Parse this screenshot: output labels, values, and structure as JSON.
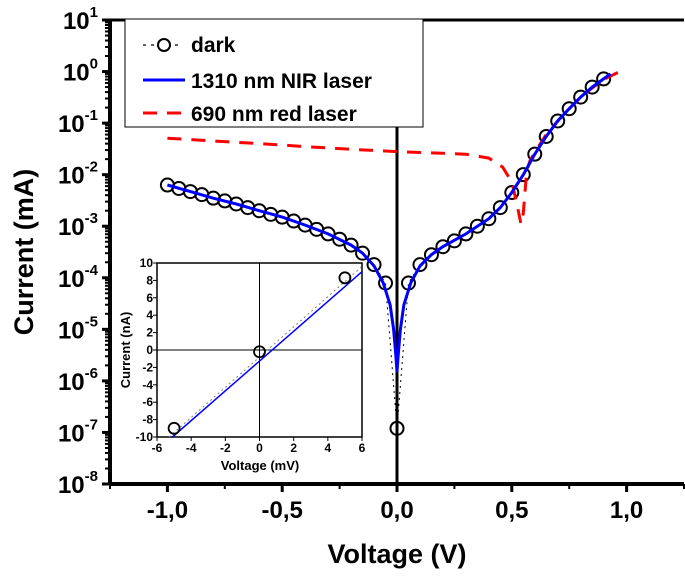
{
  "chart_data": [
    {
      "type": "line",
      "xlabel": "Voltage (V)",
      "ylabel": "Current (mA)",
      "xlim": [
        -1.25,
        1.25
      ],
      "ylim": [
        1e-08,
        10
      ],
      "y_scale": "log",
      "grid": false,
      "legend_position": "top-left",
      "x_ticks": [
        "-1,0",
        "-0,5",
        "0,0",
        "0,5",
        "1,0"
      ],
      "x_tick_values": [
        -1.0,
        -0.5,
        0.0,
        0.5,
        1.0
      ],
      "y_ticks": [
        {
          "base": "10",
          "exp": "1"
        },
        {
          "base": "10",
          "exp": "0"
        },
        {
          "base": "10",
          "exp": "-1"
        },
        {
          "base": "10",
          "exp": "-2"
        },
        {
          "base": "10",
          "exp": "-3"
        },
        {
          "base": "10",
          "exp": "-4"
        },
        {
          "base": "10",
          "exp": "-5"
        },
        {
          "base": "10",
          "exp": "-6"
        },
        {
          "base": "10",
          "exp": "-7"
        },
        {
          "base": "10",
          "exp": "-8"
        }
      ],
      "y_tick_values": [
        10,
        1,
        0.1,
        0.01,
        0.001,
        0.0001,
        1e-05,
        1e-06,
        1e-07,
        1e-08
      ],
      "series": [
        {
          "name": "dark",
          "color": "#000000",
          "style": "dotted-circles",
          "x": [
            -1.0,
            -0.95,
            -0.9,
            -0.85,
            -0.8,
            -0.75,
            -0.7,
            -0.65,
            -0.6,
            -0.55,
            -0.5,
            -0.45,
            -0.4,
            -0.35,
            -0.3,
            -0.25,
            -0.2,
            -0.15,
            -0.1,
            -0.05,
            0.0,
            0.05,
            0.1,
            0.15,
            0.2,
            0.25,
            0.3,
            0.35,
            0.4,
            0.45,
            0.5,
            0.55,
            0.6,
            0.65,
            0.7,
            0.75,
            0.8,
            0.85,
            0.9
          ],
          "y": [
            0.0063,
            0.0054,
            0.0047,
            0.0041,
            0.0035,
            0.0031,
            0.0027,
            0.0023,
            0.002,
            0.0017,
            0.0015,
            0.00126,
            0.00105,
            0.00087,
            0.00071,
            0.00056,
            0.00043,
            0.0003,
            0.00018,
            7.9e-05,
            1.2e-07,
            7.9e-05,
            0.00018,
            0.00028,
            0.0004,
            0.00052,
            0.00071,
            0.001,
            0.0014,
            0.0023,
            0.0045,
            0.01,
            0.025,
            0.055,
            0.11,
            0.19,
            0.32,
            0.5,
            0.72
          ]
        },
        {
          "name": "1310 nm NIR laser",
          "color": "#0000ff",
          "style": "solid",
          "x": [
            -1.0,
            -0.9,
            -0.8,
            -0.7,
            -0.6,
            -0.5,
            -0.4,
            -0.3,
            -0.2,
            -0.15,
            -0.1,
            -0.06,
            -0.03,
            -0.015,
            -0.005,
            0.0,
            0.005,
            0.015,
            0.03,
            0.06,
            0.1,
            0.15,
            0.2,
            0.3,
            0.4,
            0.45,
            0.5,
            0.55,
            0.6,
            0.65,
            0.7,
            0.75,
            0.8,
            0.85,
            0.93
          ],
          "y": [
            0.0063,
            0.0047,
            0.0035,
            0.0027,
            0.002,
            0.0015,
            0.00105,
            0.00071,
            0.00043,
            0.0003,
            0.00017,
            8e-05,
            3e-05,
            1e-05,
            3e-06,
            1.5e-06,
            3e-06,
            1e-05,
            3e-05,
            8e-05,
            0.00017,
            0.00028,
            0.0004,
            0.00071,
            0.0014,
            0.0023,
            0.0045,
            0.01,
            0.025,
            0.055,
            0.11,
            0.19,
            0.32,
            0.5,
            0.9
          ]
        },
        {
          "name": "690 nm red laser",
          "color": "#ff0000",
          "style": "dashed",
          "x": [
            -1.0,
            -0.8,
            -0.6,
            -0.4,
            -0.2,
            0.0,
            0.2,
            0.3,
            0.4,
            0.46,
            0.5,
            0.52,
            0.54,
            0.55,
            0.565,
            0.58,
            0.6,
            0.65,
            0.7,
            0.75,
            0.8,
            0.85,
            0.9,
            0.97
          ],
          "y": [
            0.051,
            0.045,
            0.04,
            0.035,
            0.031,
            0.028,
            0.026,
            0.025,
            0.021,
            0.014,
            0.0072,
            0.003,
            0.0011,
            0.0018,
            0.012,
            0.019,
            0.027,
            0.06,
            0.11,
            0.19,
            0.32,
            0.48,
            0.7,
            1.0
          ]
        }
      ]
    },
    {
      "type": "line",
      "xlabel": "Voltage (mV)",
      "ylabel": "Current (nA)",
      "xlim": [
        -6,
        6
      ],
      "ylim": [
        -10,
        10
      ],
      "grid": false,
      "x_ticks": [
        "-6",
        "-4",
        "-2",
        "0",
        "2",
        "4",
        "6"
      ],
      "x_tick_values": [
        -6,
        -4,
        -2,
        0,
        2,
        4,
        6
      ],
      "y_ticks": [
        "10",
        "8",
        "6",
        "4",
        "2",
        "0",
        "-2",
        "-4",
        "-6",
        "-8",
        "-10"
      ],
      "y_tick_values": [
        10,
        8,
        6,
        4,
        2,
        0,
        -2,
        -4,
        -6,
        -8,
        -10
      ],
      "series": [
        {
          "color": "#000000",
          "style": "dotted-circles",
          "x": [
            -5,
            0,
            5
          ],
          "y": [
            -9.0,
            -0.2,
            8.3
          ]
        },
        {
          "color": "#808080",
          "style": "dotted",
          "x": [
            -5.3,
            6
          ],
          "y": [
            -10,
            9.6
          ]
        },
        {
          "color": "#0000ff",
          "style": "solid",
          "x": [
            -5.1,
            6
          ],
          "y": [
            -10,
            9.0
          ]
        }
      ]
    }
  ]
}
